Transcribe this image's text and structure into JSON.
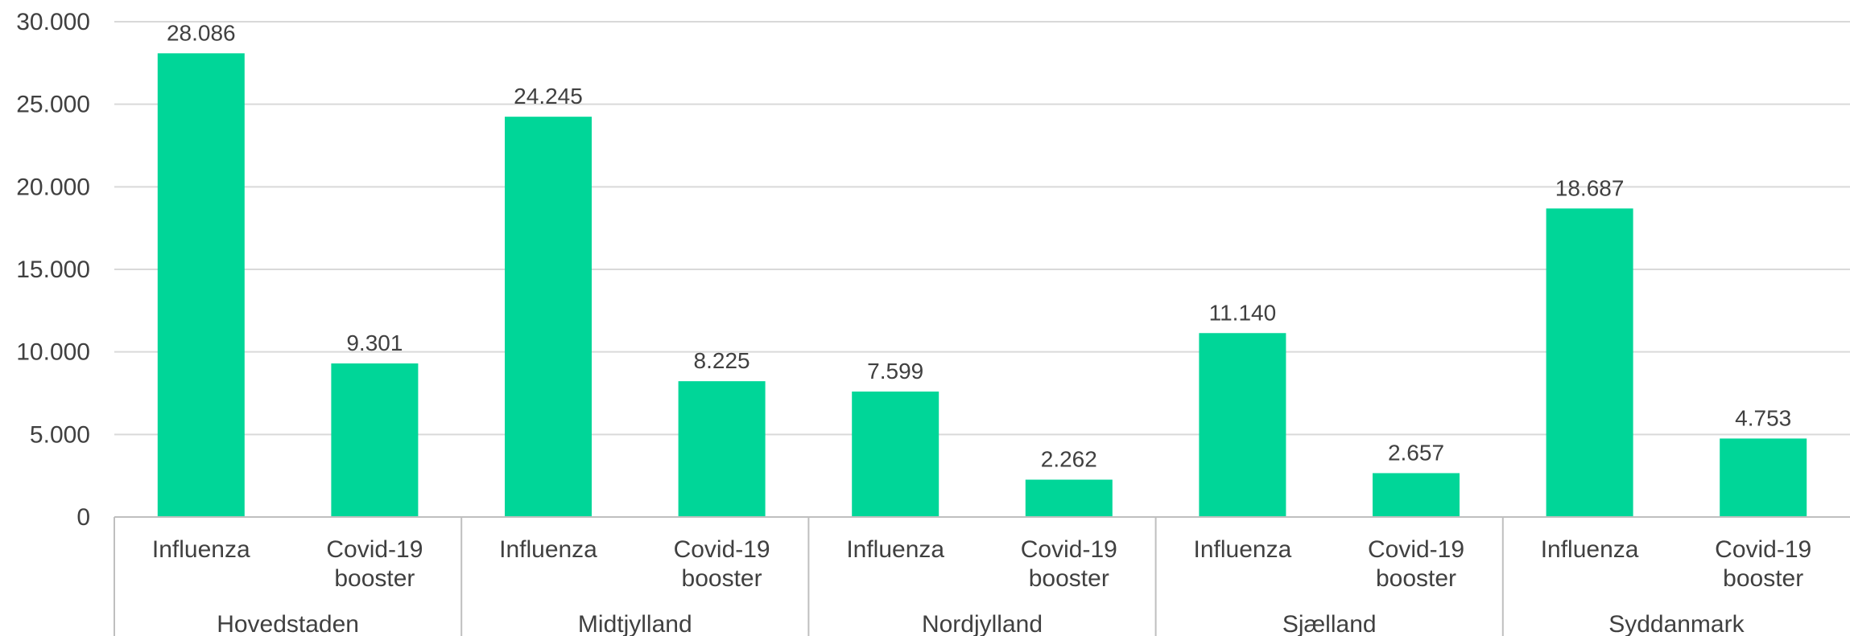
{
  "chart_data": {
    "type": "bar",
    "title": "",
    "xlabel": "",
    "ylabel": "",
    "ylim": [
      0,
      30000
    ],
    "yticks": [
      0,
      5000,
      10000,
      15000,
      20000,
      25000,
      30000
    ],
    "ytick_labels": [
      "0",
      "5.000",
      "10.000",
      "15.000",
      "20.000",
      "25.000",
      "30.000"
    ],
    "grid": true,
    "bar_color": "#00D698",
    "groups": [
      {
        "name": "Hovedstaden",
        "bars": [
          {
            "category": "Influenza",
            "value": 28086,
            "label": "28.086"
          },
          {
            "category": "Covid-19 booster",
            "value": 9301,
            "label": "9.301"
          }
        ]
      },
      {
        "name": "Midtjylland",
        "bars": [
          {
            "category": "Influenza",
            "value": 24245,
            "label": "24.245"
          },
          {
            "category": "Covid-19 booster",
            "value": 8225,
            "label": "8.225"
          }
        ]
      },
      {
        "name": "Nordjylland",
        "bars": [
          {
            "category": "Influenza",
            "value": 7599,
            "label": "7.599"
          },
          {
            "category": "Covid-19 booster",
            "value": 2262,
            "label": "2.262"
          }
        ]
      },
      {
        "name": "Sjælland",
        "bars": [
          {
            "category": "Influenza",
            "value": 11140,
            "label": "11.140"
          },
          {
            "category": "Covid-19 booster",
            "value": 2657,
            "label": "2.657"
          }
        ]
      },
      {
        "name": "Syddanmark",
        "bars": [
          {
            "category": "Influenza",
            "value": 18687,
            "label": "18.687"
          },
          {
            "category": "Covid-19 booster",
            "value": 4753,
            "label": "4.753"
          }
        ]
      }
    ]
  }
}
